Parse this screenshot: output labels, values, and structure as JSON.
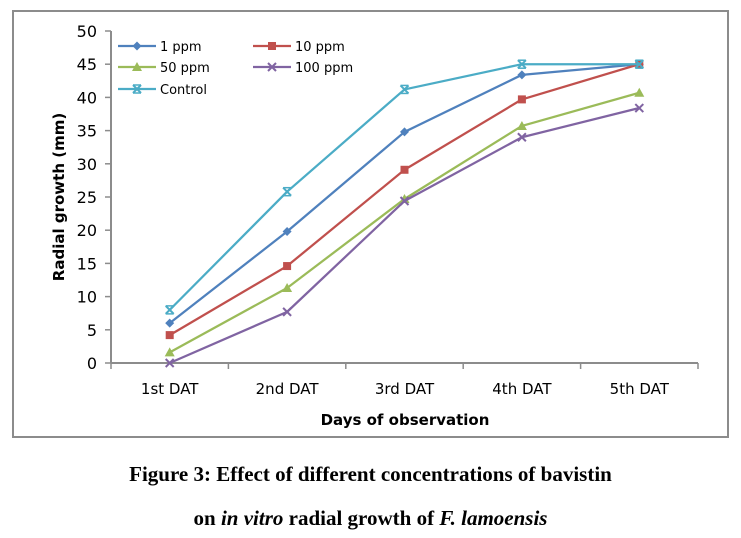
{
  "chart_data": {
    "type": "line",
    "title": "",
    "xlabel": "Days of observation",
    "ylabel": "Radial growth (mm)",
    "categories": [
      "1st DAT",
      "2nd DAT",
      "3rd DAT",
      "4th DAT",
      "5th DAT"
    ],
    "ylim": [
      0,
      50
    ],
    "yticks": [
      0,
      5,
      10,
      15,
      20,
      25,
      30,
      35,
      40,
      45,
      50
    ],
    "grid": false,
    "legend_position": "top-left",
    "series": [
      {
        "name": "1 ppm",
        "color": "#4F81BD",
        "marker": "diamond",
        "values": [
          6.0,
          19.8,
          34.8,
          43.4,
          45.0
        ]
      },
      {
        "name": "10 ppm",
        "color": "#C0504D",
        "marker": "square",
        "values": [
          4.2,
          14.6,
          29.1,
          39.7,
          45.0
        ]
      },
      {
        "name": "50 ppm",
        "color": "#9BBB59",
        "marker": "triangle",
        "values": [
          1.6,
          11.3,
          24.7,
          35.7,
          40.7
        ]
      },
      {
        "name": "100 ppm",
        "color": "#8064A2",
        "marker": "x",
        "values": [
          0.0,
          7.7,
          24.4,
          34.0,
          38.4
        ]
      },
      {
        "name": "Control",
        "color": "#4BACC6",
        "marker": "star",
        "values": [
          8.0,
          25.8,
          41.2,
          45.0,
          45.0
        ]
      }
    ]
  },
  "caption": {
    "line1": "Figure 3: Effect of different concentrations of bavistin",
    "line2_a": "on ",
    "line2_b": "in vitro",
    "line2_c": " radial growth of ",
    "line2_d": "F. lamoensis"
  }
}
